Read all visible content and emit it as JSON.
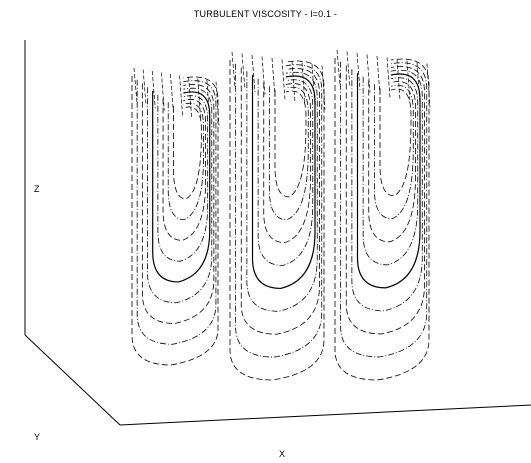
{
  "title": "TURBULENT VISCOSITY  -  l=0.1  -",
  "axes": {
    "x_label": "X",
    "y_label": "Y",
    "z_label": "Z"
  },
  "contour_cells": 3,
  "line_styles": [
    "solid",
    "dashed",
    "dash-dot"
  ],
  "colors": {
    "background": "#ffffff",
    "ink": "#000000"
  }
}
